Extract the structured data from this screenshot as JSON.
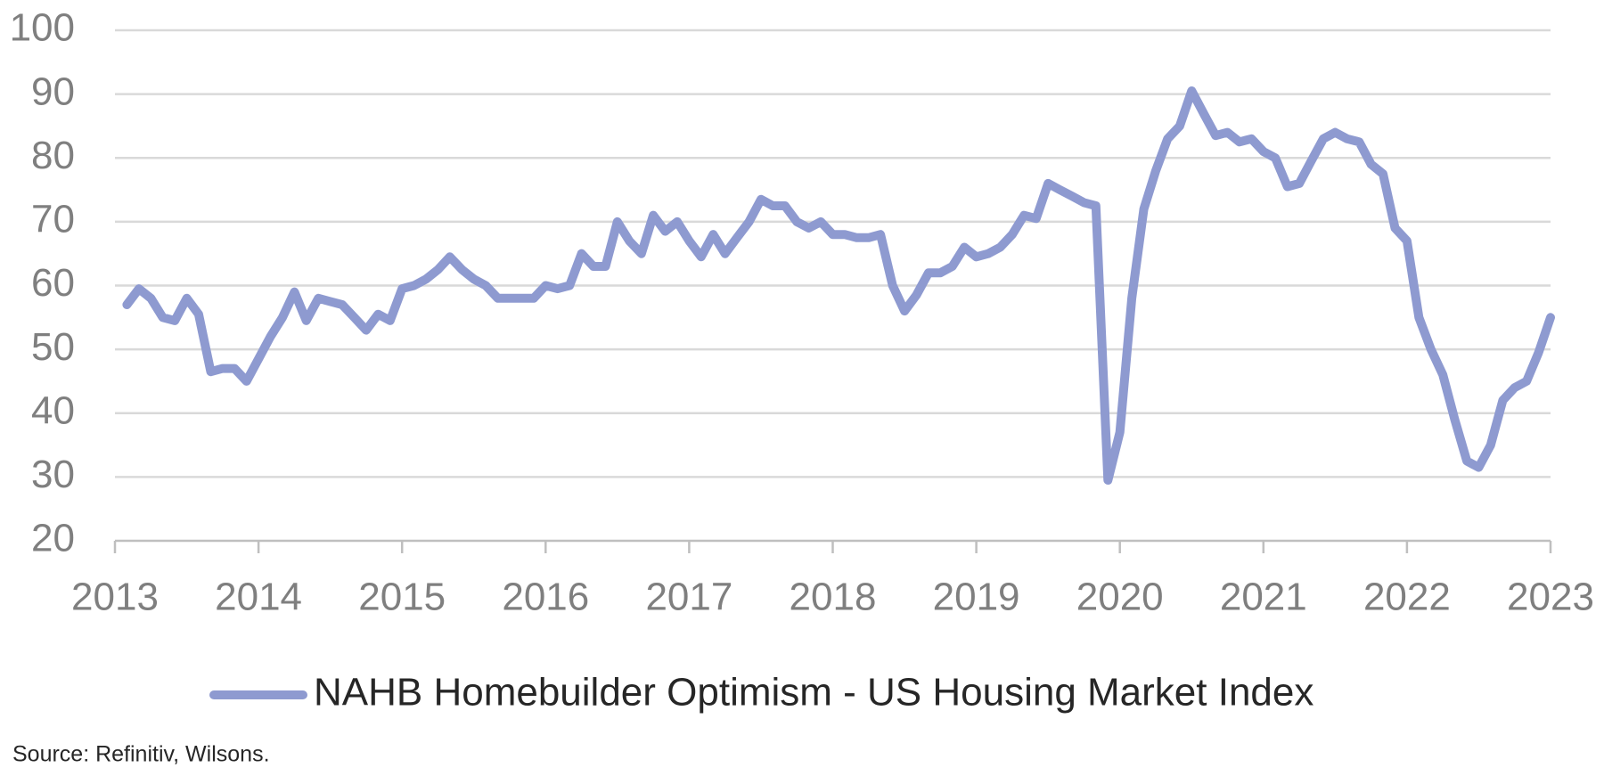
{
  "chart_data": {
    "type": "line",
    "x": [
      2013.083,
      2013.167,
      2013.25,
      2013.333,
      2013.417,
      2013.5,
      2013.583,
      2013.667,
      2013.75,
      2013.833,
      2013.917,
      2014,
      2014.083,
      2014.167,
      2014.25,
      2014.333,
      2014.417,
      2014.5,
      2014.583,
      2014.667,
      2014.75,
      2014.833,
      2014.917,
      2015,
      2015.083,
      2015.167,
      2015.25,
      2015.333,
      2015.417,
      2015.5,
      2015.583,
      2015.667,
      2015.75,
      2015.833,
      2015.917,
      2016,
      2016.083,
      2016.167,
      2016.25,
      2016.333,
      2016.417,
      2016.5,
      2016.583,
      2016.667,
      2016.75,
      2016.833,
      2016.917,
      2017,
      2017.083,
      2017.167,
      2017.25,
      2017.333,
      2017.417,
      2017.5,
      2017.583,
      2017.667,
      2017.75,
      2017.833,
      2017.917,
      2018,
      2018.083,
      2018.167,
      2018.25,
      2018.333,
      2018.417,
      2018.5,
      2018.583,
      2018.667,
      2018.75,
      2018.833,
      2018.917,
      2019,
      2019.083,
      2019.167,
      2019.25,
      2019.333,
      2019.417,
      2019.5,
      2019.583,
      2019.667,
      2019.75,
      2019.833,
      2019.917,
      2020,
      2020.083,
      2020.167,
      2020.25,
      2020.333,
      2020.417,
      2020.5,
      2020.583,
      2020.667,
      2020.75,
      2020.833,
      2020.917,
      2021,
      2021.083,
      2021.167,
      2021.25,
      2021.333,
      2021.417,
      2021.5,
      2021.583,
      2021.667,
      2021.75,
      2021.833,
      2021.917,
      2022,
      2022.083,
      2022.167,
      2022.25,
      2022.333,
      2022.417,
      2022.5,
      2022.583,
      2022.667,
      2022.75,
      2022.833,
      2022.917,
      2023
    ],
    "series": [
      {
        "name": "NAHB Homebuilder Optimism - US Housing Market Index",
        "color": "#8e9ad0",
        "values": [
          57,
          59.5,
          58,
          55,
          54.5,
          58,
          55.5,
          46.5,
          47,
          47,
          45,
          48.5,
          52,
          55,
          59,
          54.5,
          58,
          57.5,
          57,
          55,
          53,
          55.5,
          54.5,
          59.5,
          60,
          61,
          62.5,
          64.5,
          62.5,
          61,
          60,
          58,
          58,
          58,
          58,
          60,
          59.5,
          60,
          65,
          63,
          63,
          70,
          67,
          65,
          71,
          68.5,
          70,
          67,
          64.5,
          68,
          65,
          67.5,
          70,
          73.5,
          72.5,
          72.5,
          70,
          69,
          70,
          68,
          68,
          67.5,
          67.5,
          68,
          60,
          56,
          58.5,
          62,
          62,
          63,
          66,
          64.5,
          65,
          66,
          68,
          71,
          70.5,
          76,
          75,
          74,
          73,
          72.5,
          29.5,
          37,
          58,
          72,
          78,
          83,
          85,
          90.5,
          87,
          83.5,
          84,
          82.5,
          83,
          81,
          80,
          75.5,
          76,
          79.5,
          83,
          84,
          83,
          82.5,
          79,
          77.5,
          69,
          67,
          55,
          50,
          46,
          39,
          32.5,
          31.5,
          35,
          42,
          44,
          45,
          49.5,
          55
        ]
      }
    ],
    "xlim": [
      2013,
      2023
    ],
    "xticks": [
      2013,
      2014,
      2015,
      2016,
      2017,
      2018,
      2019,
      2020,
      2021,
      2022,
      2023
    ],
    "ylim": [
      20,
      100
    ],
    "yticks": [
      20,
      30,
      40,
      50,
      60,
      70,
      80,
      90,
      100
    ],
    "grid": true,
    "source": "Source: Refinitiv, Wilsons."
  }
}
